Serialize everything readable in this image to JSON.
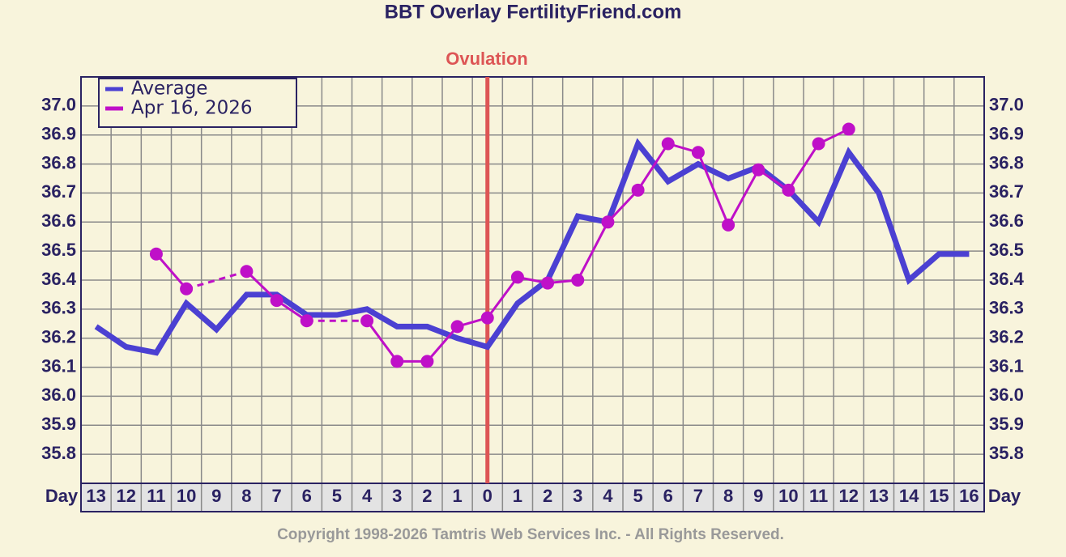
{
  "chart_data": {
    "type": "line",
    "title": "BBT Overlay FertilityFriend.com",
    "annotation": "Ovulation",
    "x_label": "Day",
    "categories": [
      "13",
      "12",
      "11",
      "10",
      "9",
      "8",
      "7",
      "6",
      "5",
      "4",
      "3",
      "2",
      "1",
      "0",
      "1",
      "2",
      "3",
      "4",
      "5",
      "6",
      "7",
      "8",
      "9",
      "10",
      "11",
      "12",
      "13",
      "14",
      "15",
      "16"
    ],
    "series": [
      {
        "name": "Average",
        "color": "#4b40d2",
        "values": [
          36.24,
          36.17,
          36.15,
          36.32,
          36.23,
          36.35,
          36.35,
          36.28,
          36.28,
          36.3,
          36.24,
          36.24,
          36.2,
          36.17,
          36.32,
          36.4,
          36.62,
          36.6,
          36.87,
          36.74,
          36.8,
          36.75,
          36.79,
          36.71,
          36.6,
          36.84,
          36.7,
          36.4,
          36.49,
          36.49
        ]
      },
      {
        "name": "Apr 16, 2026",
        "color": "#bf10c8",
        "values": [
          null,
          null,
          36.49,
          36.37,
          null,
          36.43,
          36.33,
          36.26,
          null,
          36.26,
          36.12,
          36.12,
          36.24,
          36.27,
          36.41,
          36.39,
          36.4,
          36.6,
          36.71,
          36.87,
          36.84,
          36.59,
          36.78,
          36.71,
          36.87,
          36.92,
          null,
          null,
          null,
          null
        ]
      }
    ],
    "ylim": [
      35.7,
      37.1
    ],
    "yticks": [
      35.8,
      35.9,
      {
        "value": 36,
        "label": "36.0"
      },
      36.1,
      36.2,
      36.3,
      36.4,
      36.5,
      36.6,
      36.7,
      36.8,
      36.9,
      {
        "value": 37,
        "label": "37.0"
      }
    ],
    "grid": true,
    "footer": "Copyright 1998-2026 Tamtris Web Services Inc. - All Rights Reserved."
  }
}
